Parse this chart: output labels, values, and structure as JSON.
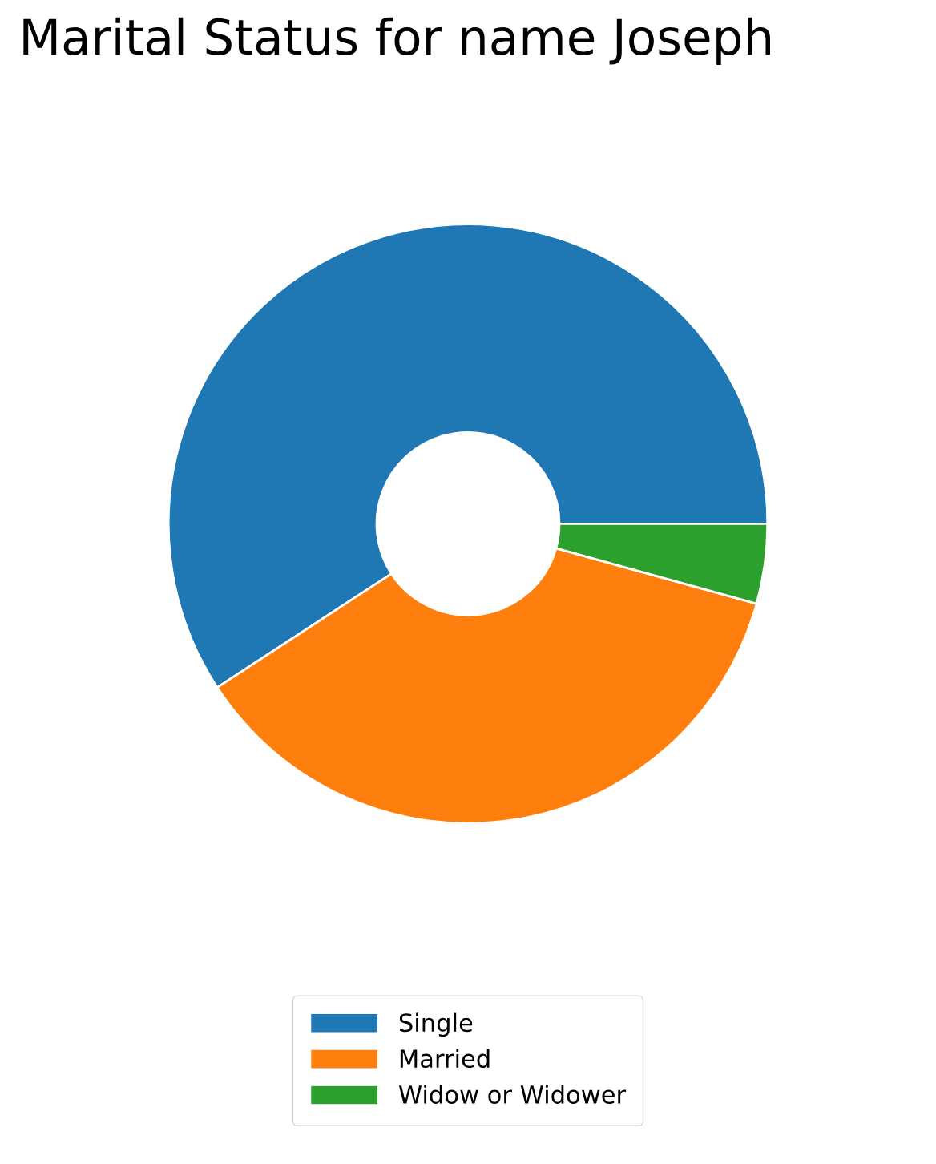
{
  "chart_data": {
    "type": "donut",
    "title": "Marital Status for name Joseph",
    "categories": [
      "Single",
      "Married",
      "Widow or Widower"
    ],
    "values": [
      59.2,
      36.5,
      4.3
    ],
    "colors": [
      "#1f77b4",
      "#ff7f0e",
      "#2ca02c"
    ],
    "legend": "bottom"
  }
}
